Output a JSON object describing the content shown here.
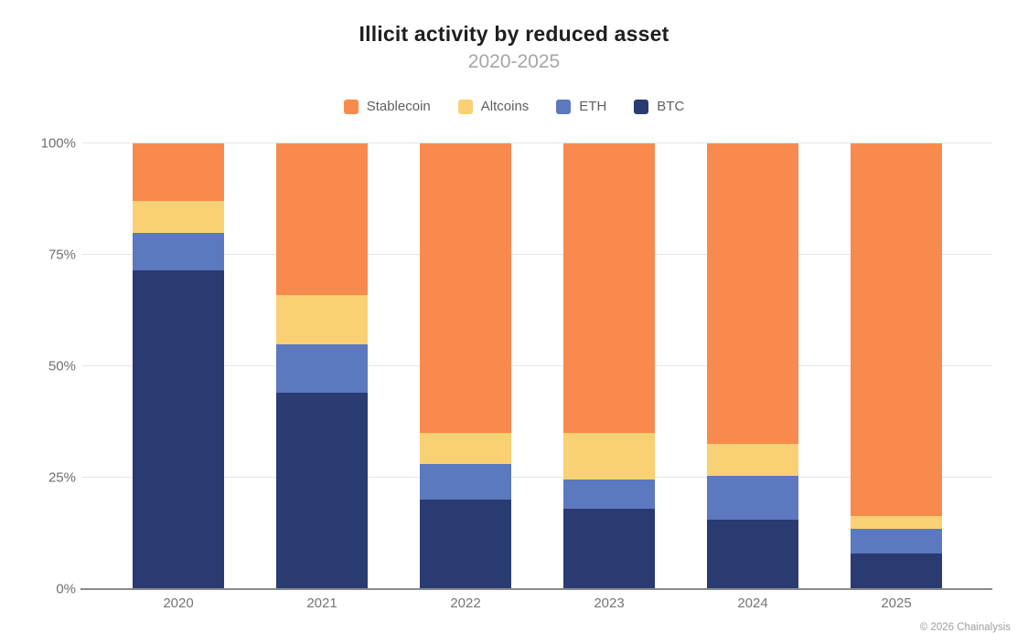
{
  "title": "Illicit activity by reduced asset",
  "subtitle": "2020-2025",
  "footer": "© 2026 Chainalysis",
  "colors": {
    "stablecoin": "#f98a4d",
    "altcoins": "#f9d074",
    "eth": "#5c78be",
    "btc": "#2a3b72",
    "gridline": "#e5e5e5",
    "axis_line": "#8a8a8a",
    "title_text": "#1e1e1e",
    "subtitle_text": "#a7a7a7",
    "tick_text": "#6f6f6f"
  },
  "chart_data": {
    "type": "bar",
    "stacked": true,
    "unit": "%",
    "title": "Illicit activity by reduced asset",
    "subtitle": "2020-2025",
    "xlabel": "",
    "ylabel": "",
    "ylim": [
      0,
      100
    ],
    "grid": true,
    "legend_position": "top",
    "categories": [
      "2020",
      "2021",
      "2022",
      "2023",
      "2024",
      "2025"
    ],
    "series": [
      {
        "name": "BTC",
        "color": "#2a3b72",
        "values": [
          71.5,
          44.0,
          20.0,
          18.0,
          15.5,
          8.0
        ]
      },
      {
        "name": "ETH",
        "color": "#5c78be",
        "values": [
          8.5,
          11.0,
          8.0,
          6.5,
          10.0,
          5.5
        ]
      },
      {
        "name": "Altcoins",
        "color": "#f9d074",
        "values": [
          7.0,
          11.0,
          7.0,
          10.5,
          7.0,
          3.0
        ]
      },
      {
        "name": "Stablecoin",
        "color": "#f98a4d",
        "values": [
          13.0,
          34.0,
          65.0,
          65.0,
          67.5,
          83.5
        ]
      }
    ],
    "legend": [
      {
        "label": "Stablecoin",
        "color": "#f98a4d"
      },
      {
        "label": "Altcoins",
        "color": "#f9d074"
      },
      {
        "label": "ETH",
        "color": "#5c78be"
      },
      {
        "label": "BTC",
        "color": "#2a3b72"
      }
    ],
    "y_ticks": [
      {
        "label": "0%",
        "value": 0
      },
      {
        "label": "25%",
        "value": 25
      },
      {
        "label": "50%",
        "value": 50
      },
      {
        "label": "75%",
        "value": 75
      },
      {
        "label": "100%",
        "value": 100
      }
    ]
  }
}
